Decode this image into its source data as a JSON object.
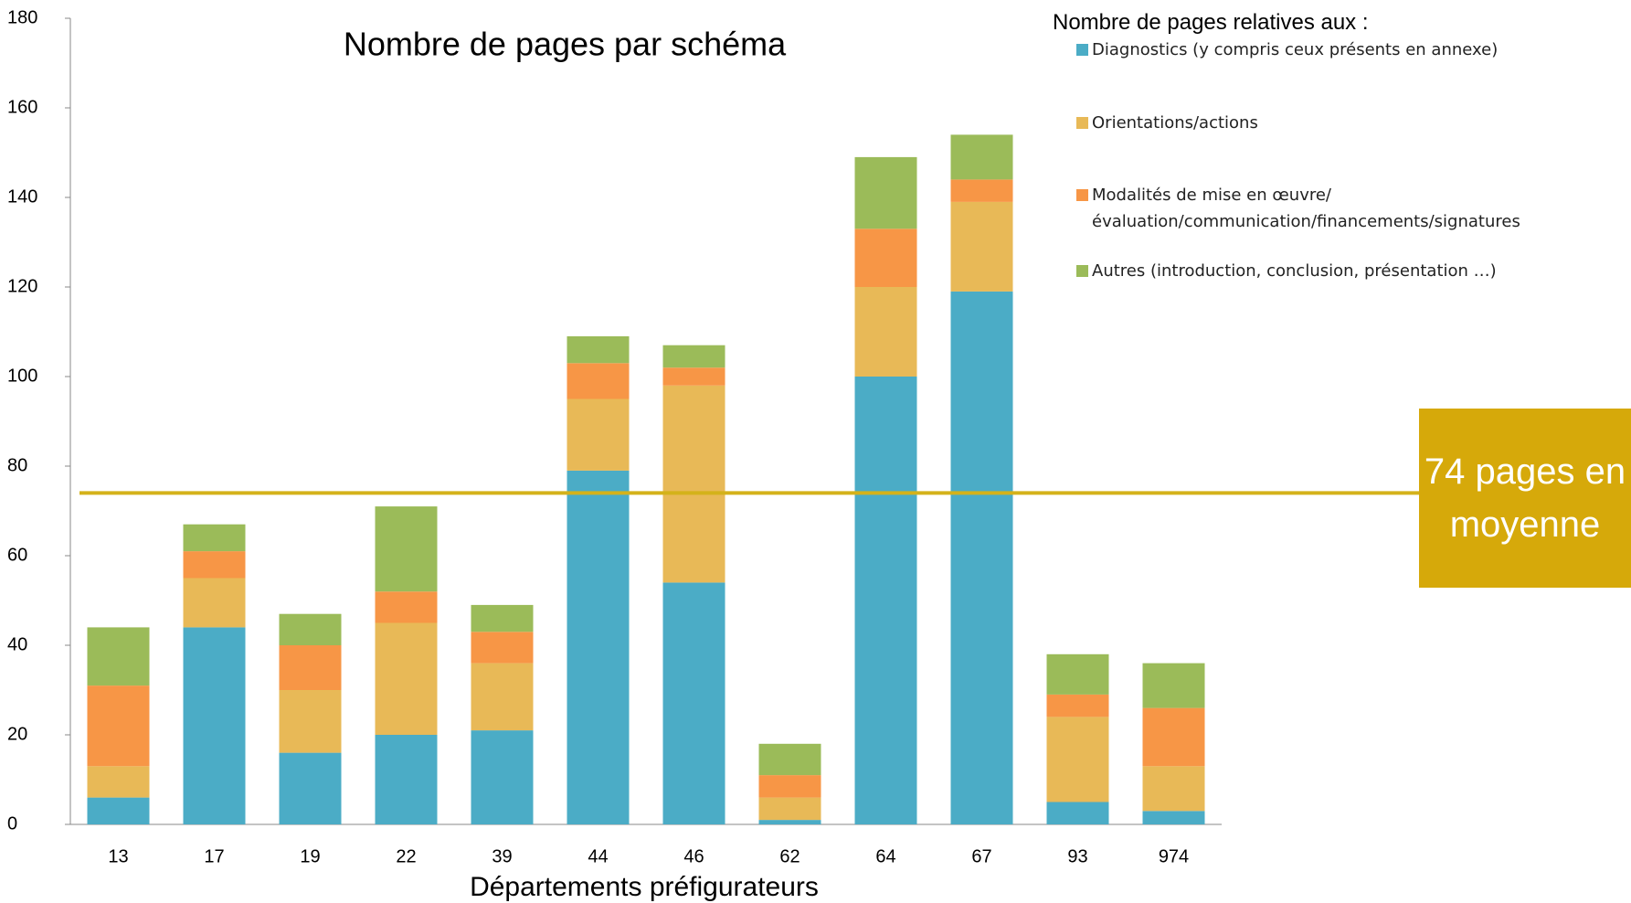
{
  "chart_data": {
    "type": "stacked_bar",
    "title": "Nombre de pages par schéma",
    "x_label": "Départements préfigurateurs",
    "legend_title": "Nombre de pages relatives aux :",
    "categories": [
      "13",
      "17",
      "19",
      "22",
      "39",
      "44",
      "46",
      "62",
      "64",
      "67",
      "93",
      "974"
    ],
    "series": [
      {
        "name": "Diagnostics (y compris ceux présents en annexe)",
        "color": "#4bacc6",
        "values": [
          6,
          44,
          16,
          20,
          21,
          79,
          54,
          1,
          100,
          119,
          5,
          3
        ]
      },
      {
        "name": "Orientations/actions",
        "color": "#e8b957",
        "values": [
          7,
          11,
          14,
          25,
          15,
          16,
          44,
          5,
          20,
          20,
          19,
          10
        ]
      },
      {
        "name": "Modalités de mise en œuvre/évaluation/communication/financements/signatures",
        "color": "#f79646",
        "values": [
          18,
          6,
          10,
          7,
          7,
          8,
          4,
          5,
          13,
          5,
          5,
          13
        ]
      },
      {
        "name": "Autres (introduction, conclusion, présentation …)",
        "color": "#9bbb59",
        "values": [
          13,
          6,
          7,
          19,
          6,
          6,
          5,
          7,
          16,
          10,
          9,
          10
        ]
      }
    ],
    "ylim": [
      0,
      180
    ],
    "yticks": [
      0,
      20,
      40,
      60,
      80,
      100,
      120,
      140,
      160,
      180
    ],
    "average": 74,
    "average_color": "#d4b21a",
    "average_label": "74 pages en moyenne",
    "average_label_color": "#d6a90a"
  }
}
